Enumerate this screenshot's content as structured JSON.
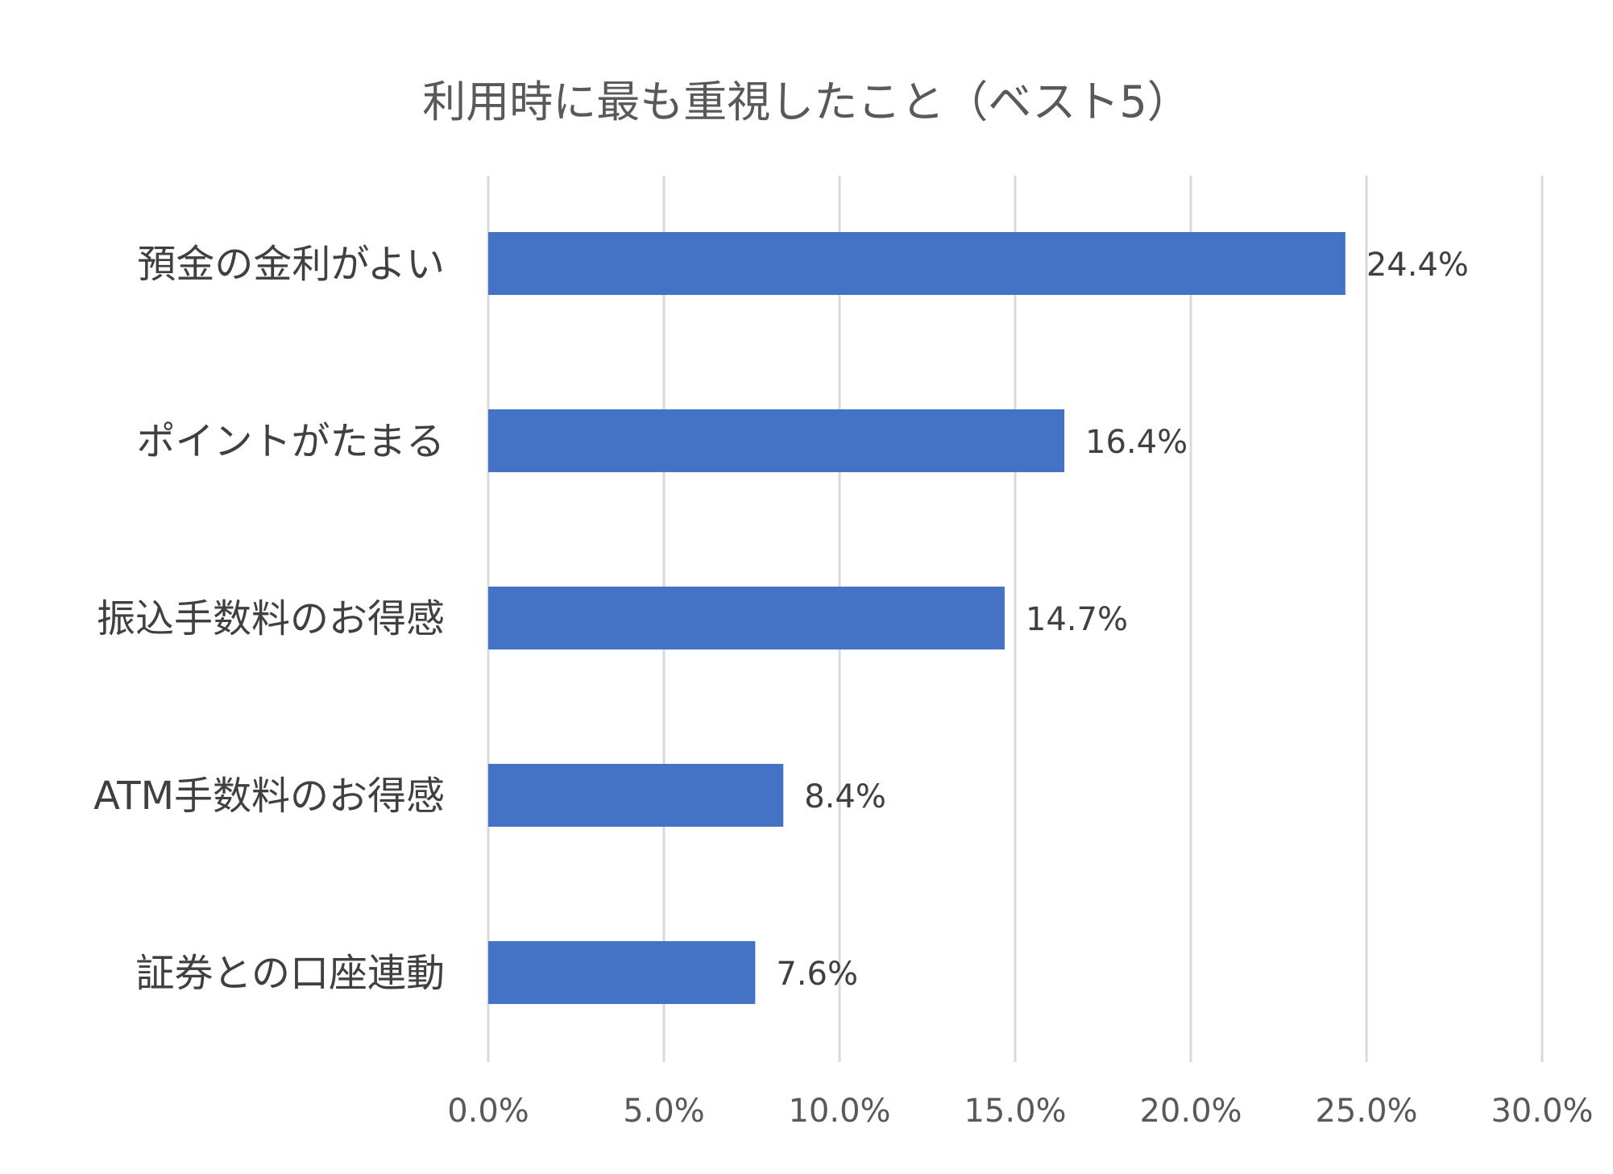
{
  "chart_data": {
    "type": "bar",
    "orientation": "horizontal",
    "title": "利用時に最も重視したこと（ベスト5）",
    "categories": [
      "預金の金利がよい",
      "ポイントがたまる",
      "振込手数料のお得感",
      "ATM手数料のお得感",
      "証券との口座連動"
    ],
    "values": [
      24.4,
      16.4,
      14.7,
      8.4,
      7.6
    ],
    "data_labels": [
      "24.4%",
      "16.4%",
      "14.7%",
      "8.4%",
      "7.6%"
    ],
    "x_ticks": [
      0,
      5,
      10,
      15,
      20,
      25,
      30
    ],
    "x_tick_labels": [
      "0.0%",
      "5.0%",
      "10.0%",
      "15.0%",
      "20.0%",
      "25.0%",
      "30.0%"
    ],
    "xlim": [
      0,
      30
    ],
    "xlabel": "",
    "ylabel": "",
    "grid": "vertical",
    "legend": "none",
    "bar_color": "#4472C4"
  }
}
